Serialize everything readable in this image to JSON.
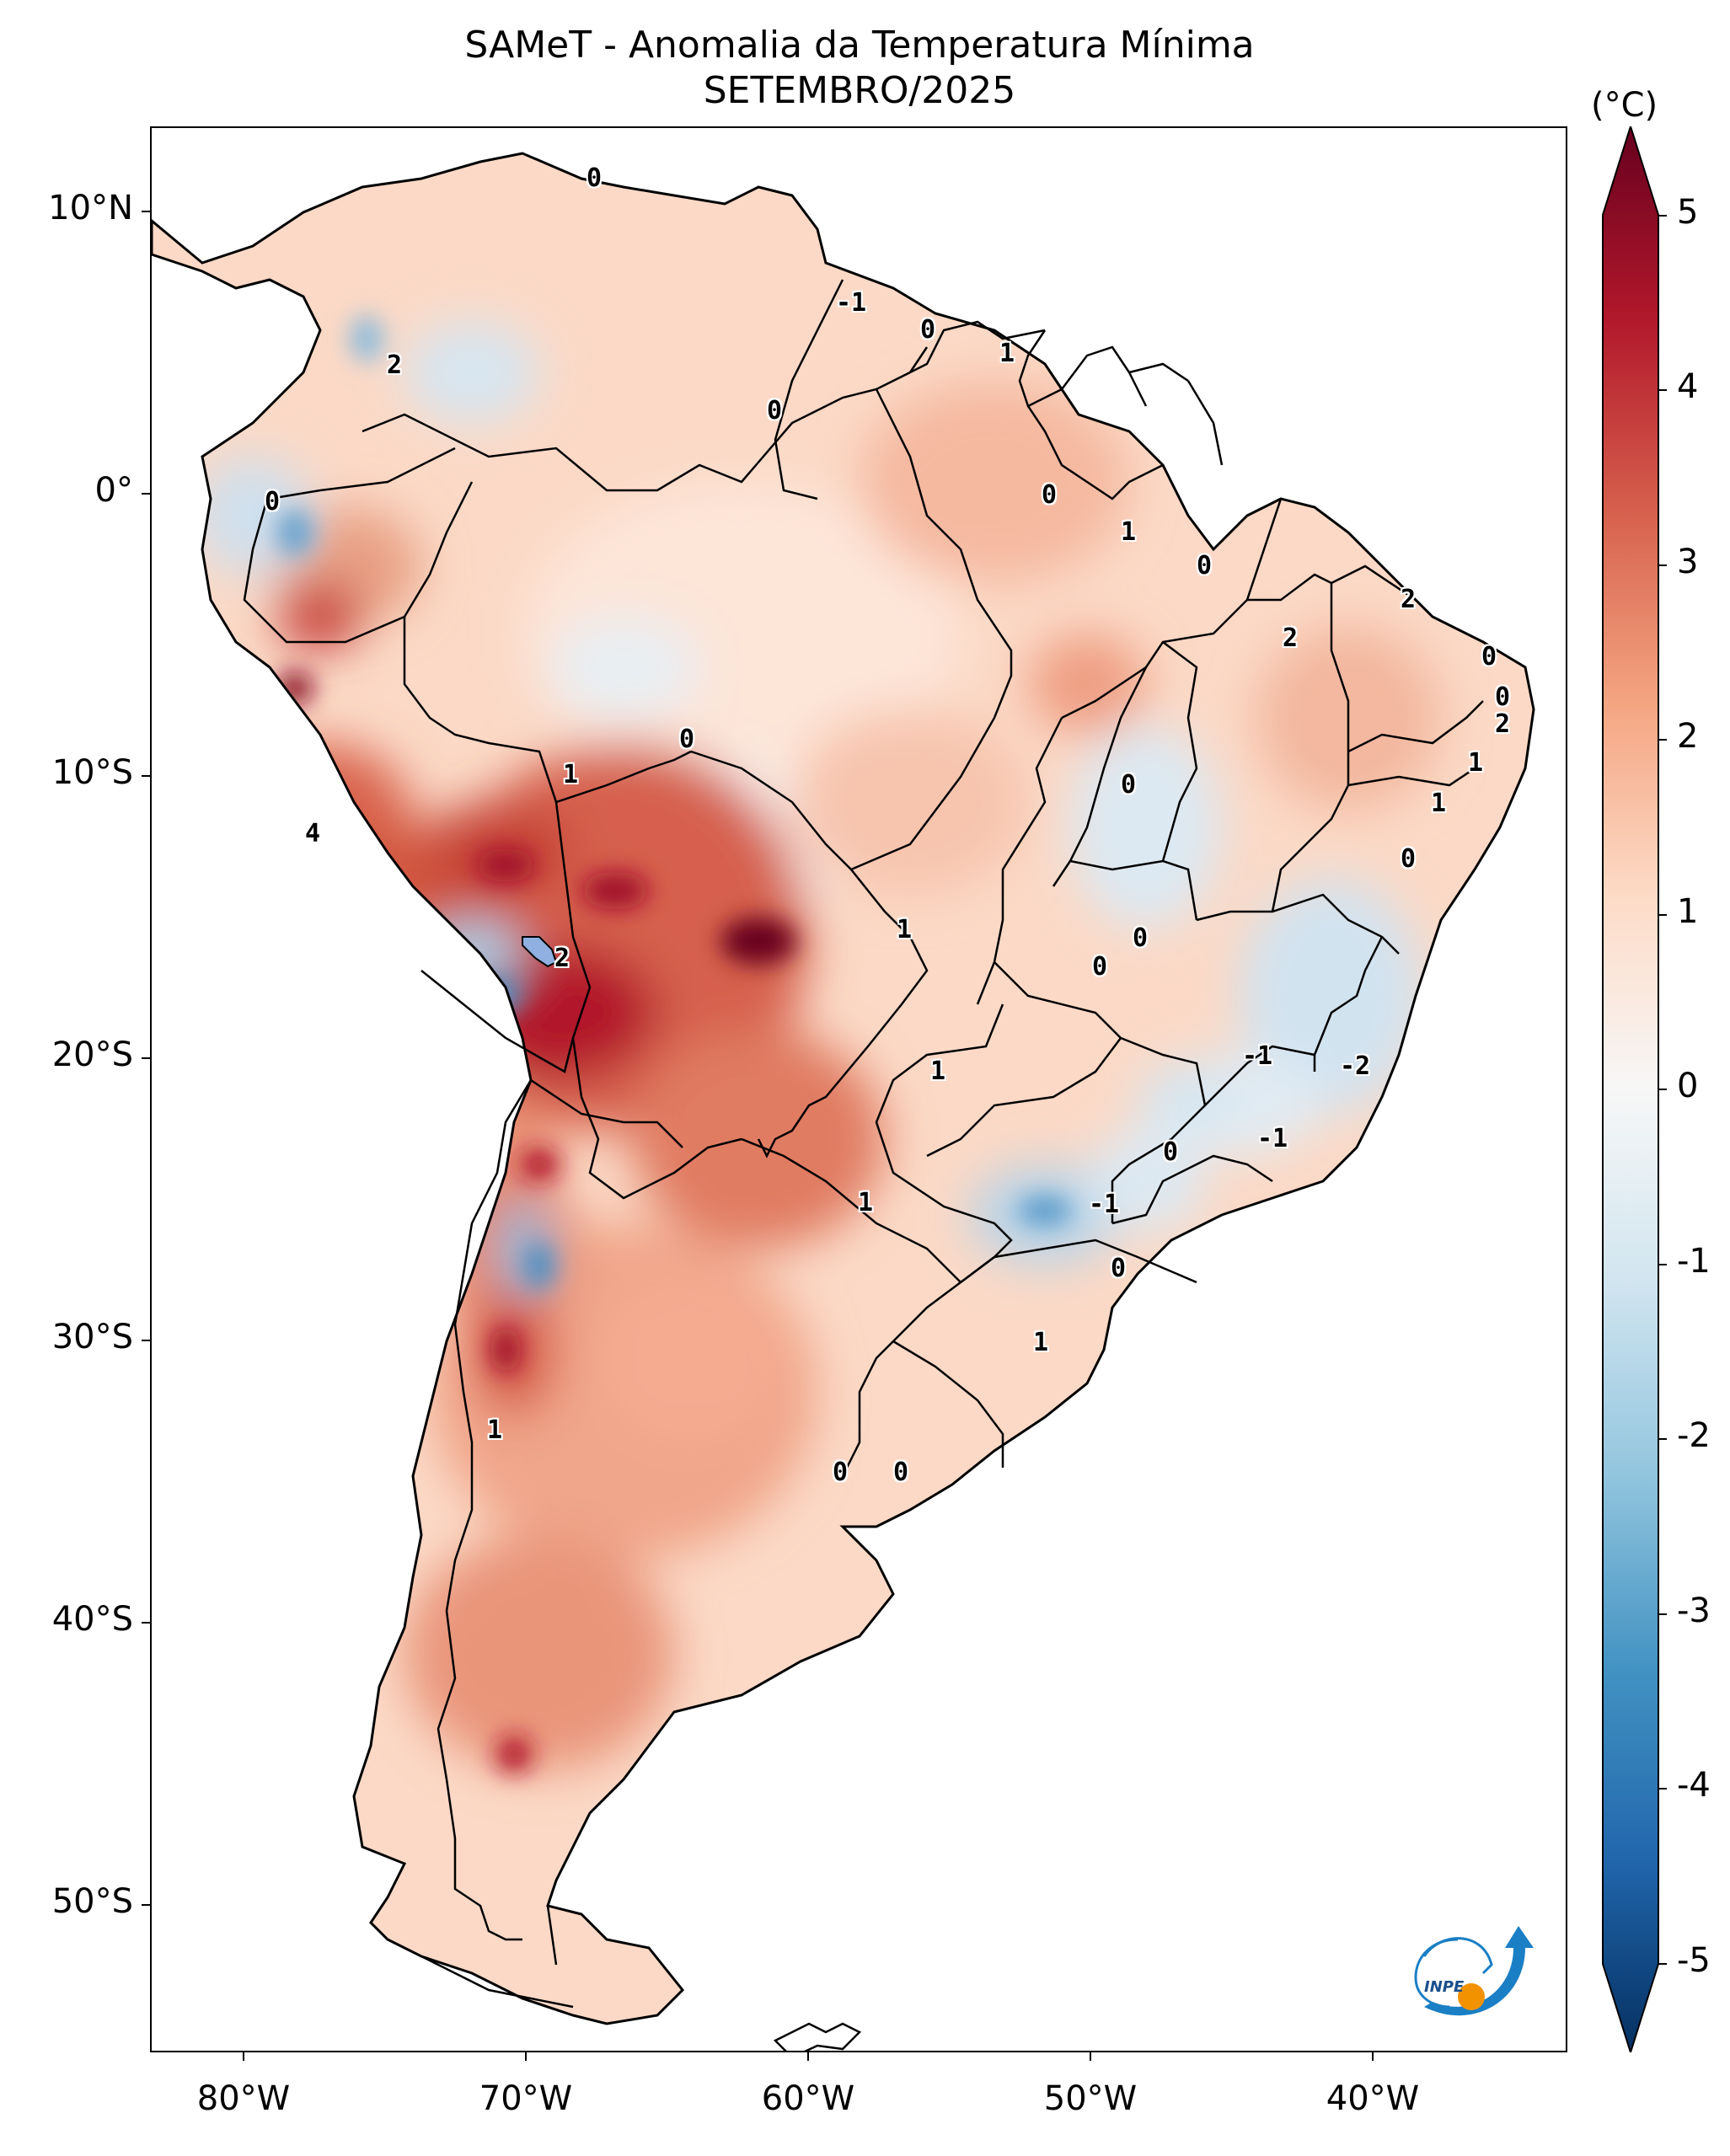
{
  "title": "SAMeT - Anomalia da Temperatura Mínima",
  "subtitle": "SETEMBRO/2025",
  "colorbar": {
    "unit": "(°C)",
    "labels": [
      "5",
      "4",
      "3",
      "2",
      "1",
      "0",
      "-1",
      "-2",
      "-3",
      "-4",
      "-5"
    ]
  },
  "axes": {
    "y_labels": [
      "10°N",
      "0°",
      "10°S",
      "20°S",
      "30°S",
      "40°S",
      "50°S"
    ],
    "x_labels": [
      "80°W",
      "70°W",
      "60°W",
      "50°W",
      "40°W"
    ]
  },
  "contour_labels": [
    "0",
    "-1",
    "0",
    "1",
    "2",
    "0",
    "0",
    "0",
    "1",
    "0",
    "2",
    "2",
    "0",
    "0",
    "2",
    "1",
    "1",
    "0",
    "1",
    "0",
    "4",
    "0",
    "2",
    "1",
    "0",
    "0",
    "-1",
    "-2",
    "1",
    "-1",
    "0",
    "-1",
    "1",
    "1",
    "0",
    "1",
    "0",
    "0"
  ],
  "logo": {
    "text": "INPE",
    "colors": {
      "blue": "#1a7fc4",
      "orange": "#f39200"
    }
  },
  "colors": {
    "border": "#000000",
    "cold": "#2166ac",
    "warm": "#b2182b",
    "neutral": "#f7f7f7"
  }
}
